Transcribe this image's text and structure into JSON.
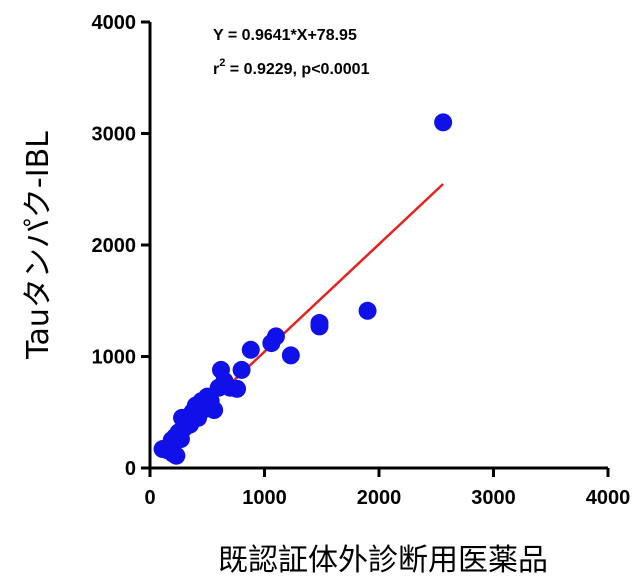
{
  "chart_data": {
    "type": "scatter",
    "xlabel": "既認証体外診断用医薬品",
    "ylabel": "Tauタンパク-IBL",
    "xlim": [
      0,
      4000
    ],
    "ylim": [
      0,
      4000
    ],
    "x_ticks": [
      "0",
      "1000",
      "2000",
      "3000",
      "4000"
    ],
    "y_ticks": [
      "0",
      "1000",
      "2000",
      "3000",
      "4000"
    ],
    "grid": false,
    "annotations": {
      "equation": "Y = 0.9641*X+78.95",
      "r2_prefix": "r",
      "r2_sup": "2",
      "r2_rest": " = 0.9229, p<0.0001"
    },
    "colors": {
      "points": "#1010e8",
      "fit_line": "#e82020",
      "axes": "#000000"
    },
    "fit_line": {
      "slope": 0.9641,
      "intercept": 78.95,
      "x_range": [
        100,
        2560
      ]
    },
    "points": [
      {
        "x": 110,
        "y": 170
      },
      {
        "x": 150,
        "y": 160
      },
      {
        "x": 175,
        "y": 200
      },
      {
        "x": 200,
        "y": 130
      },
      {
        "x": 230,
        "y": 110
      },
      {
        "x": 190,
        "y": 250
      },
      {
        "x": 220,
        "y": 280
      },
      {
        "x": 250,
        "y": 320
      },
      {
        "x": 270,
        "y": 260
      },
      {
        "x": 300,
        "y": 360
      },
      {
        "x": 320,
        "y": 420
      },
      {
        "x": 280,
        "y": 450
      },
      {
        "x": 350,
        "y": 390
      },
      {
        "x": 370,
        "y": 500
      },
      {
        "x": 400,
        "y": 560
      },
      {
        "x": 420,
        "y": 450
      },
      {
        "x": 450,
        "y": 600
      },
      {
        "x": 480,
        "y": 530
      },
      {
        "x": 500,
        "y": 640
      },
      {
        "x": 530,
        "y": 600
      },
      {
        "x": 560,
        "y": 520
      },
      {
        "x": 600,
        "y": 720
      },
      {
        "x": 620,
        "y": 880
      },
      {
        "x": 650,
        "y": 780
      },
      {
        "x": 700,
        "y": 720
      },
      {
        "x": 760,
        "y": 710
      },
      {
        "x": 800,
        "y": 880
      },
      {
        "x": 880,
        "y": 1060
      },
      {
        "x": 1060,
        "y": 1120
      },
      {
        "x": 1100,
        "y": 1180
      },
      {
        "x": 1230,
        "y": 1010
      },
      {
        "x": 1480,
        "y": 1270
      },
      {
        "x": 1480,
        "y": 1300
      },
      {
        "x": 1900,
        "y": 1410
      },
      {
        "x": 2560,
        "y": 3100
      }
    ]
  }
}
